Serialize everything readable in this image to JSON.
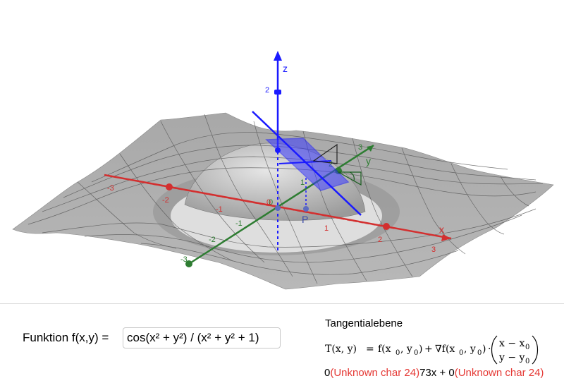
{
  "axes": {
    "x_label": "x",
    "y_label": "y",
    "z_label": "z",
    "point_label": "P",
    "x_ticks": [
      {
        "label": "-3",
        "color": "#d32f2f"
      },
      {
        "label": "-2",
        "color": "#d32f2f"
      },
      {
        "label": "-1",
        "color": "#d32f2f"
      },
      {
        "label": "0",
        "color": "#d32f2f"
      },
      {
        "label": "1",
        "color": "#d32f2f"
      },
      {
        "label": "2",
        "color": "#d32f2f"
      },
      {
        "label": "3",
        "color": "#d32f2f"
      }
    ],
    "y_ticks": [
      {
        "label": "-3",
        "color": "#2e7d32"
      },
      {
        "label": "-2",
        "color": "#2e7d32"
      },
      {
        "label": "-1",
        "color": "#2e7d32"
      },
      {
        "label": "0",
        "color": "#2e7d32"
      },
      {
        "label": "1",
        "color": "#2e7d32"
      },
      {
        "label": "2",
        "color": "#2e7d32"
      },
      {
        "label": "3",
        "color": "#2e7d32"
      }
    ],
    "z_ticks": [
      {
        "label": "2",
        "color": "#1a1aff"
      }
    ],
    "colors": {
      "x_axis": "#d32f2f",
      "y_axis": "#2e7d32",
      "z_axis": "#1a1aff",
      "surface": "#c8c8c8",
      "tangent_plane": "#3b3bff"
    }
  },
  "function_input": {
    "label": "Funktion f(x,y) =",
    "value": "cos(x² + y²) / (x² + y² + 1)"
  },
  "tangent": {
    "title": "Tangentialebene",
    "formula_lhs": "T(x, y)",
    "formula_eq": "=",
    "term1_f": "f(x",
    "term1_sub0": "0",
    "term1_mid": ", y",
    "term1_sub1": "0",
    "term1_end": ")",
    "plus": "+",
    "grad_symbol": "∇f(x",
    "grad_sub0": "0",
    "grad_mid": ", y",
    "grad_sub1": "0",
    "grad_end": ")",
    "dot": "·",
    "vec_top": "x − x",
    "vec_top_sub": "0",
    "vec_bottom": "y − y",
    "vec_bottom_sub": "0"
  },
  "result": {
    "part1": "0",
    "error1": "(Unknown char 24)",
    "part2": "73x + 0",
    "error2": "(Unknown char 24)"
  }
}
